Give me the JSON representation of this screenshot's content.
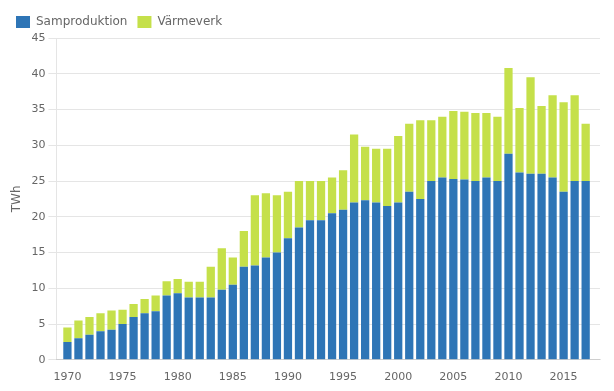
{
  "chart_data": {
    "type": "bar",
    "stacked": true,
    "ylabel": "TWh",
    "x": [
      1970,
      1971,
      1972,
      1973,
      1974,
      1975,
      1976,
      1977,
      1978,
      1979,
      1980,
      1981,
      1982,
      1983,
      1984,
      1985,
      1986,
      1987,
      1988,
      1989,
      1990,
      1991,
      1992,
      1993,
      1994,
      1995,
      1996,
      1997,
      1998,
      1999,
      2000,
      2001,
      2002,
      2003,
      2004,
      2005,
      2006,
      2007,
      2008,
      2009,
      2010,
      2011,
      2012,
      2013,
      2014,
      2015,
      2016,
      2017
    ],
    "series": [
      {
        "name": "Samproduktion",
        "color": "#2e75b6",
        "values": [
          2.5,
          3.0,
          3.5,
          4.0,
          4.2,
          5.0,
          6.0,
          6.5,
          6.8,
          9.0,
          9.3,
          8.7,
          8.7,
          8.7,
          9.8,
          10.5,
          13.0,
          13.2,
          14.3,
          15.0,
          17.0,
          18.5,
          19.5,
          19.5,
          20.5,
          21.0,
          22.0,
          22.3,
          22.0,
          21.5,
          22.0,
          23.5,
          22.5,
          25.0,
          25.5,
          25.3,
          25.2,
          25.0,
          25.5,
          25.0,
          28.8,
          26.2,
          26.0,
          26.0,
          25.5,
          23.5,
          25.0,
          25.0
        ]
      },
      {
        "name": "Värmeverk",
        "color": "#c5e04a",
        "values": [
          2.0,
          2.5,
          2.5,
          2.5,
          2.7,
          2.0,
          1.8,
          2.0,
          2.2,
          2.0,
          2.0,
          2.2,
          2.2,
          4.3,
          5.8,
          3.8,
          5.0,
          9.8,
          9.0,
          8.0,
          6.5,
          6.5,
          5.5,
          5.5,
          5.0,
          5.5,
          9.5,
          7.5,
          7.5,
          8.0,
          9.3,
          9.5,
          11.0,
          8.5,
          8.5,
          9.5,
          9.5,
          9.5,
          9.0,
          9.0,
          12.0,
          9.0,
          13.5,
          9.5,
          11.5,
          12.5,
          12.0,
          8.0
        ]
      }
    ],
    "xlim": [
      1969.0,
      2018.3
    ],
    "xticks": [
      1970,
      1975,
      1980,
      1985,
      1990,
      1995,
      2000,
      2005,
      2010,
      2015
    ],
    "ylim": [
      0,
      45
    ],
    "yticks": [
      0,
      5,
      10,
      15,
      20,
      25,
      30,
      35,
      40,
      45
    ],
    "grid": "y",
    "legend": "upper left"
  }
}
